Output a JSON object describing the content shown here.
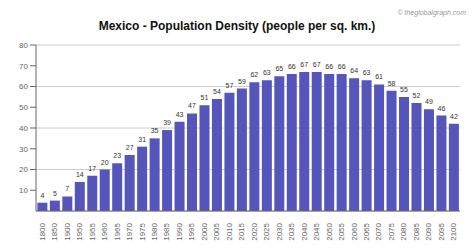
{
  "chart_data": {
    "type": "bar",
    "title": "Mexico - Population Density (people per sq. km.)",
    "categories": [
      "1800",
      "1850",
      "1900",
      "1950",
      "1955",
      "1960",
      "1965",
      "1970",
      "1975",
      "1980",
      "1985",
      "1990",
      "1995",
      "2000",
      "2005",
      "2010",
      "2015",
      "2020",
      "2025",
      "2030",
      "2035",
      "2040",
      "2045",
      "2050",
      "2055",
      "2060",
      "2065",
      "2070",
      "2075",
      "2080",
      "2085",
      "2090",
      "2095",
      "2100"
    ],
    "values": [
      4,
      5,
      7,
      14,
      17,
      20,
      23,
      27,
      31,
      35,
      39,
      43,
      47,
      51,
      54,
      57,
      59,
      62,
      63,
      65,
      66,
      67,
      67,
      66,
      66,
      64,
      63,
      61,
      58,
      55,
      52,
      49,
      46,
      42
    ],
    "color": "#5555bb",
    "ylim": [
      0,
      80
    ],
    "yticks": [
      10,
      20,
      30,
      40,
      50,
      60,
      70,
      80
    ],
    "grid": true,
    "data_labels": true,
    "annotations": [
      "© theglobalgraph.com"
    ]
  }
}
